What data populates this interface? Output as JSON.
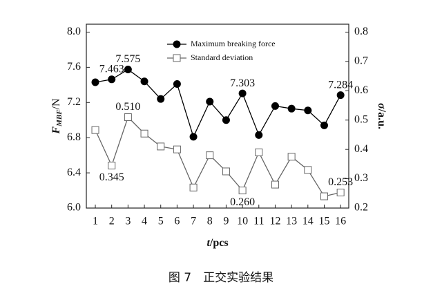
{
  "chart_data": {
    "type": "line",
    "y_label": "F",
    "y_label_sub": "MBF",
    "y_label_unit": "/N",
    "y2_label": "σ",
    "y2_label_unit": "/a.u.",
    "x_label": "t",
    "x_label_unit": "/pcs",
    "caption": "图 7　正交实验结果",
    "x": [
      1,
      2,
      3,
      4,
      5,
      6,
      7,
      8,
      9,
      10,
      11,
      12,
      13,
      14,
      15,
      16
    ],
    "xlim": [
      0.45,
      16.5
    ],
    "xticks": [
      1,
      2,
      3,
      4,
      5,
      6,
      7,
      8,
      9,
      10,
      11,
      12,
      13,
      14,
      15,
      16
    ],
    "ylim": [
      6.0,
      8.09
    ],
    "yticks": [
      {
        "value": 6.0,
        "label": "6.0"
      },
      6.4,
      6.8,
      7.2,
      7.6,
      {
        "value": 8.0,
        "label": "8.0"
      }
    ],
    "y2lim": [
      0.2,
      0.827
    ],
    "y2ticks": [
      0.2,
      0.3,
      0.4,
      0.5,
      0.6,
      0.7,
      0.8
    ],
    "legend": "top-left",
    "series": [
      {
        "name": "Maximum breaking force",
        "color": "#000000",
        "marker": "filled-circle",
        "values": [
          7.43,
          7.463,
          7.575,
          7.44,
          7.24,
          7.41,
          6.81,
          7.21,
          7.0,
          7.303,
          6.83,
          7.16,
          7.13,
          7.11,
          6.94,
          7.284
        ],
        "value_labels": [
          null,
          "7.463",
          "7.575",
          null,
          null,
          null,
          null,
          null,
          null,
          "7.303",
          null,
          null,
          null,
          null,
          null,
          "7.284"
        ]
      },
      {
        "name": "Standard deviation",
        "color": "#666666",
        "marker": "open-square",
        "axis": "y2",
        "values": [
          0.466,
          0.345,
          0.51,
          0.454,
          0.41,
          0.4,
          0.27,
          0.38,
          0.325,
          0.26,
          0.39,
          0.28,
          0.375,
          0.33,
          0.24,
          0.253
        ],
        "value_labels": [
          null,
          "0.345",
          "0.510",
          null,
          null,
          null,
          null,
          null,
          null,
          "0.260",
          null,
          null,
          null,
          null,
          null,
          "0.253"
        ]
      }
    ]
  }
}
